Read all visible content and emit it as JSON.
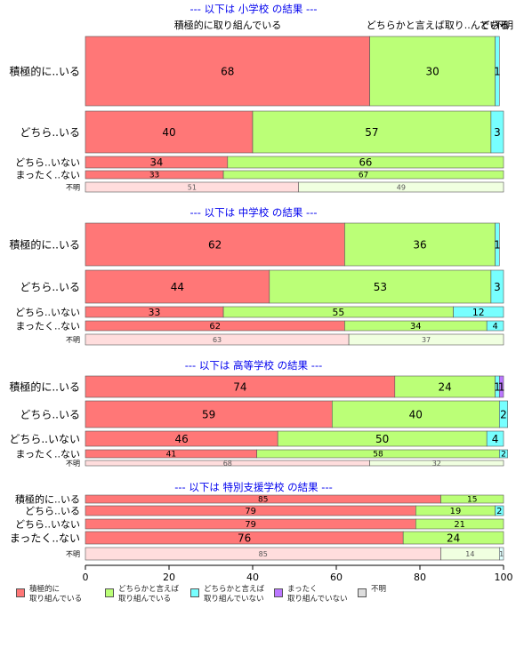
{
  "chart_data": {
    "type": "bar",
    "orientation": "horizontal",
    "stacked": true,
    "xlim": [
      0,
      100
    ],
    "x_ticks": [
      0,
      20,
      40,
      60,
      80,
      100
    ],
    "column_width_labels": [
      {
        "category": "積極的に取り組んでいる",
        "label": "積極的に取り組んでいる"
      },
      {
        "category": "どちらかと言えば取り組んでいる",
        "label": "どちらかと言えば取り..んでいる"
      },
      {
        "category": "どちらかと言えば取り組んでいない",
        "label": "どちら"
      },
      {
        "category": "不明",
        "label": "不明"
      }
    ],
    "legend": [
      {
        "key": "active",
        "label": "積極的に\n取り組んでいる",
        "color": "#ff7777"
      },
      {
        "key": "somewhat",
        "label": "どちらかと言えば\n取り組んでいる",
        "color": "#bbff77"
      },
      {
        "key": "somewhat_not",
        "label": "どちらかと言えば\n取り組んでいない",
        "color": "#77ffff"
      },
      {
        "key": "not_at_all",
        "label": "まったく\n取り組んでいない",
        "color": "#bb77ff"
      },
      {
        "key": "unknown",
        "label": "不明",
        "color": "#dddddd"
      }
    ],
    "panels": [
      {
        "title": "--- 以下は 小学校 の結果 ---",
        "rows": [
          {
            "label": "積極的に..いる",
            "values": [
              68,
              30,
              1,
              0
            ],
            "labels": [
              "68",
              "30",
              "1",
              ""
            ]
          },
          {
            "label": "どちら..いる",
            "values": [
              40,
              57,
              3,
              0
            ],
            "labels": [
              "40",
              "57",
              "3",
              ""
            ]
          },
          {
            "label": "どちら..いない",
            "values": [
              34,
              66,
              0,
              0
            ],
            "labels": [
              "34",
              "66",
              "",
              ""
            ]
          },
          {
            "label": "まったく..ない",
            "values": [
              33,
              67,
              0,
              0
            ],
            "labels": [
              "33",
              "67",
              "",
              ""
            ]
          },
          {
            "label": "不明",
            "values": [
              51,
              49,
              0,
              0
            ],
            "labels": [
              "51",
              "49",
              "",
              ""
            ],
            "muted": true
          }
        ]
      },
      {
        "title": "--- 以下は 中学校 の結果 ---",
        "rows": [
          {
            "label": "積極的に..いる",
            "values": [
              62,
              36,
              1,
              0
            ],
            "labels": [
              "62",
              "36",
              "1",
              ""
            ]
          },
          {
            "label": "どちら..いる",
            "values": [
              44,
              53,
              3,
              0
            ],
            "labels": [
              "44",
              "53",
              "3",
              ""
            ]
          },
          {
            "label": "どちら..いない",
            "values": [
              33,
              55,
              12,
              0
            ],
            "labels": [
              "33",
              "55",
              "12",
              ""
            ]
          },
          {
            "label": "まったく..ない",
            "values": [
              62,
              34,
              4,
              0
            ],
            "labels": [
              "62",
              "34",
              "4",
              ""
            ]
          },
          {
            "label": "不明",
            "values": [
              63,
              37,
              0,
              0
            ],
            "labels": [
              "63",
              "37",
              "",
              ""
            ],
            "muted": true
          }
        ]
      },
      {
        "title": "--- 以下は 高等学校 の結果 ---",
        "rows": [
          {
            "label": "積極的に..いる",
            "values": [
              74,
              24,
              1,
              1
            ],
            "labels": [
              "74",
              "24",
              "1",
              "1"
            ]
          },
          {
            "label": "どちら..いる",
            "values": [
              59,
              40,
              2,
              0
            ],
            "labels": [
              "59",
              "40",
              "2",
              ""
            ]
          },
          {
            "label": "どちら..いない",
            "values": [
              46,
              50,
              4,
              0
            ],
            "labels": [
              "46",
              "50",
              "4",
              ""
            ]
          },
          {
            "label": "まったく..ない",
            "values": [
              41,
              58,
              2,
              0
            ],
            "labels": [
              "41",
              "58",
              "2",
              ""
            ]
          },
          {
            "label": "不明",
            "values": [
              68,
              32,
              0,
              0
            ],
            "labels": [
              "68",
              "32",
              "",
              ""
            ],
            "muted": true
          }
        ]
      },
      {
        "title": "--- 以下は 特別支援学校 の結果 ---",
        "rows": [
          {
            "label": "積極的に..いる",
            "values": [
              85,
              15,
              0,
              0
            ],
            "labels": [
              "85",
              "15",
              "",
              ""
            ]
          },
          {
            "label": "どちら..いる",
            "values": [
              79,
              19,
              2,
              0
            ],
            "labels": [
              "79",
              "19",
              "2",
              ""
            ]
          },
          {
            "label": "どちら..いない",
            "values": [
              79,
              21,
              0,
              0
            ],
            "labels": [
              "79",
              "21",
              "",
              ""
            ]
          },
          {
            "label": "まったく..ない",
            "values": [
              76,
              24,
              0,
              0
            ],
            "labels": [
              "76",
              "24",
              "",
              ""
            ]
          },
          {
            "label": "不明",
            "values": [
              85,
              14,
              1,
              0
            ],
            "labels": [
              "85",
              "14",
              "1",
              ""
            ],
            "muted": true
          }
        ]
      }
    ]
  }
}
